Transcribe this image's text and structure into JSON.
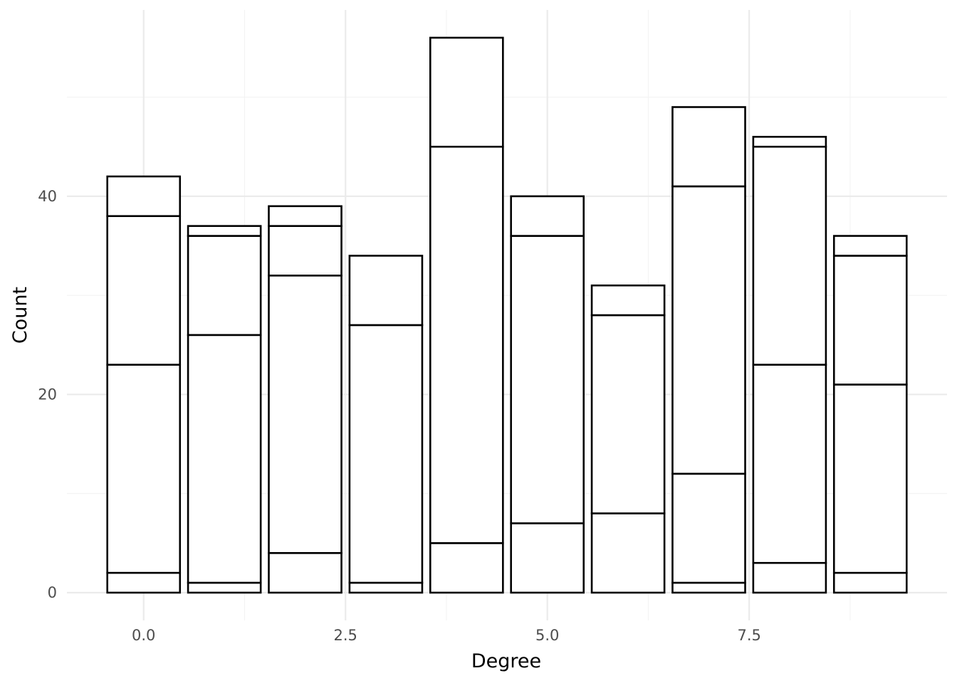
{
  "chart_data": {
    "type": "bar",
    "stacked": true,
    "xlabel": "Degree",
    "ylabel": "Count",
    "x": [
      0,
      1,
      2,
      3,
      4,
      5,
      6,
      7,
      8,
      9
    ],
    "stack_boundaries": [
      [
        2,
        23,
        38,
        42
      ],
      [
        1,
        26,
        36,
        37
      ],
      [
        4,
        32,
        37,
        39
      ],
      [
        1,
        27,
        34
      ],
      [
        5,
        45,
        56
      ],
      [
        7,
        36,
        40
      ],
      [
        8,
        28,
        31
      ],
      [
        1,
        12,
        41,
        49
      ],
      [
        3,
        23,
        45,
        46
      ],
      [
        2,
        21,
        34,
        36
      ]
    ],
    "totals": [
      42,
      37,
      39,
      34,
      56,
      40,
      31,
      49,
      46,
      36
    ],
    "x_ticks": [
      {
        "value": 0,
        "label": "0.0"
      },
      {
        "value": 2.5,
        "label": "2.5"
      },
      {
        "value": 5,
        "label": "5.0"
      },
      {
        "value": 7.5,
        "label": "7.5"
      }
    ],
    "y_ticks": [
      {
        "value": 0,
        "label": "0"
      },
      {
        "value": 20,
        "label": "20"
      },
      {
        "value": 40,
        "label": "40"
      }
    ],
    "xlim": [
      -0.95,
      9.95
    ],
    "ylim": [
      -2.8,
      58.8
    ],
    "bar_width": 0.9,
    "grid": true,
    "legend": "none",
    "colors": {
      "bar_fill": "#ffffff",
      "bar_outline": "#000000",
      "grid": "#ebebeb",
      "tick_text": "#4d4d4d"
    }
  }
}
